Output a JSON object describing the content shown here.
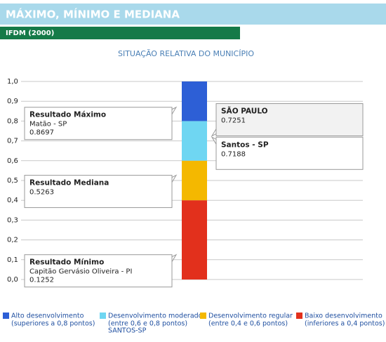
{
  "header": {
    "title": "MÁXIMO, MÍNIMO E MEDIANA",
    "subtitle": "IFDM (2000)"
  },
  "chart_data": {
    "type": "stacked-bar",
    "title": "SITUAÇÃO RELATIVA DO MUNICÍPIO",
    "ylim": [
      0,
      1
    ],
    "yticks": [
      {
        "value": 0,
        "label": "0,0"
      },
      {
        "value": 0.1,
        "label": "0,1"
      },
      {
        "value": 0.2,
        "label": "0,2"
      },
      {
        "value": 0.3,
        "label": "0,3"
      },
      {
        "value": 0.4,
        "label": "0,4"
      },
      {
        "value": 0.5,
        "label": "0,5"
      },
      {
        "value": 0.6,
        "label": "0,6"
      },
      {
        "value": 0.7,
        "label": "0,7"
      },
      {
        "value": 0.8,
        "label": "0,8"
      },
      {
        "value": 0.9,
        "label": "0,9"
      },
      {
        "value": 1,
        "label": "1,0"
      }
    ],
    "grid": true,
    "series": [
      {
        "name": "Alto desenvolvimento",
        "description": "(superiores a 0,8 pontos)",
        "color": "#2d5fd6",
        "values": [
          0.2
        ]
      },
      {
        "name": "Desenvolvimento moderado",
        "description": "(entre 0,6 e 0,8 pontos)",
        "note": "SANTOS-SP",
        "color": "#6fd6f2",
        "values": [
          0.2
        ]
      },
      {
        "name": "Desenvolvimento regular",
        "description": "(entre 0,4 e 0,6 pontos)",
        "color": "#f4b800",
        "values": [
          0.2
        ]
      },
      {
        "name": "Baixo desenvolvimento",
        "description": "(inferiores a 0,4 pontos)",
        "color": "#e2301c",
        "values": [
          0.4
        ]
      }
    ],
    "annotations": [
      {
        "title": "Resultado Máximo",
        "subtitle": "Matão - SP",
        "value": 0.8697,
        "side": "left"
      },
      {
        "title": "Resultado Mediana",
        "value": 0.5263,
        "side": "left"
      },
      {
        "title": "Resultado Mínimo",
        "subtitle": "Capitão Gervásio Oliveira - PI",
        "value": 0.1252,
        "side": "left"
      },
      {
        "title": "SÃO PAULO",
        "value": 0.7251,
        "side": "right",
        "highlight": true
      },
      {
        "title": "Santos - SP",
        "value": 0.7188,
        "side": "right"
      }
    ]
  }
}
